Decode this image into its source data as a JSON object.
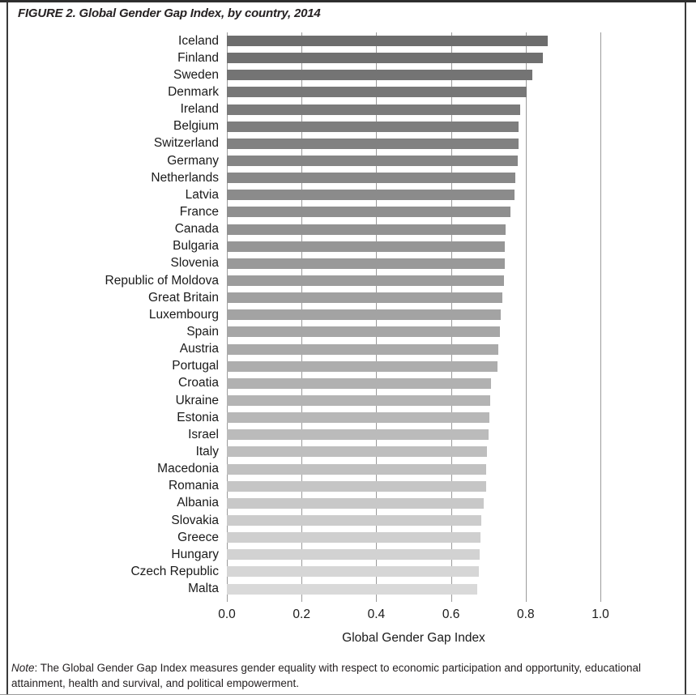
{
  "figure": {
    "title": "FIGURE 2. Global Gender Gap Index, by country, 2014",
    "note_label": "Note",
    "note_text": ": The Global Gender Gap Index measures gender equality with respect to economic participation and opportunity, educational attainment, health and survival, and political empowerment."
  },
  "chart_data": {
    "type": "bar",
    "orientation": "horizontal",
    "title": "FIGURE 2. Global Gender Gap Index, by country, 2014",
    "xlabel": "Global Gender Gap Index",
    "ylabel": "",
    "xlim": [
      0.0,
      1.0
    ],
    "xticks": [
      0.0,
      0.2,
      0.4,
      0.6,
      0.8,
      1.0
    ],
    "xtick_labels": [
      "0.0",
      "0.2",
      "0.4",
      "0.6",
      "0.8",
      "1.0"
    ],
    "grid": true,
    "legend": false,
    "categories": [
      "Iceland",
      "Finland",
      "Sweden",
      "Denmark",
      "Ireland",
      "Belgium",
      "Switzerland",
      "Germany",
      "Netherlands",
      "Latvia",
      "France",
      "Canada",
      "Bulgaria",
      "Slovenia",
      "Republic of Moldova",
      "Great Britain",
      "Luxembourg",
      "Spain",
      "Austria",
      "Portugal",
      "Croatia",
      "Ukraine",
      "Estonia",
      "Israel",
      "Italy",
      "Macedonia",
      "Romania",
      "Albania",
      "Slovakia",
      "Greece",
      "Hungary",
      "Czech Republic",
      "Malta"
    ],
    "values": [
      0.859,
      0.845,
      0.817,
      0.803,
      0.785,
      0.781,
      0.78,
      0.778,
      0.773,
      0.769,
      0.759,
      0.746,
      0.744,
      0.744,
      0.742,
      0.738,
      0.733,
      0.732,
      0.727,
      0.724,
      0.708,
      0.706,
      0.702,
      0.7,
      0.697,
      0.694,
      0.694,
      0.687,
      0.681,
      0.678,
      0.677,
      0.674,
      0.67
    ],
    "bar_color_top": "#6d6d6d",
    "bar_color_bottom": "#d9d9d9",
    "gridline_color": "#9b9b9b"
  }
}
